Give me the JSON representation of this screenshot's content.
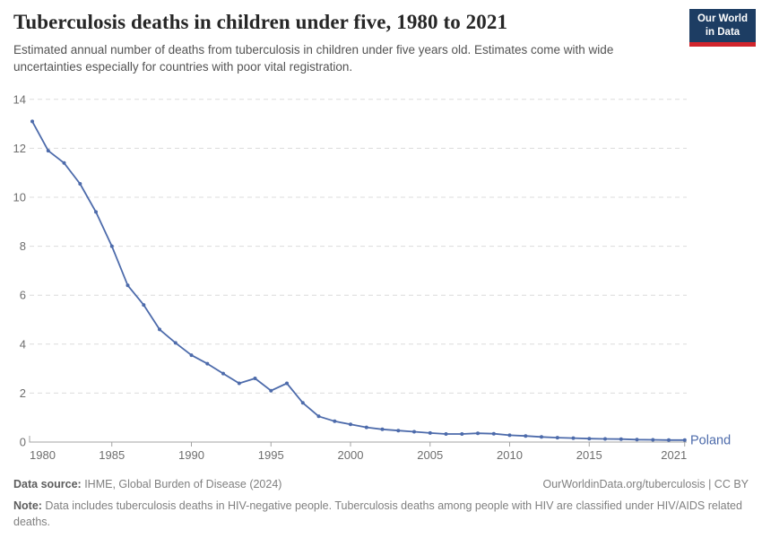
{
  "header": {
    "title": "Tuberculosis deaths in children under five, 1980 to 2021",
    "subtitle": "Estimated annual number of deaths from tuberculosis in children under five years old. Estimates come with wide uncertainties especially for countries with poor vital registration.",
    "logo": {
      "line1": "Our World",
      "line2": "in Data",
      "bg_color": "#1d3d63",
      "bar_color": "#d1252c"
    }
  },
  "chart_data": {
    "type": "line",
    "title": "Tuberculosis deaths in children under five, 1980 to 2021",
    "xlabel": "",
    "ylabel": "",
    "ylim": [
      0,
      14
    ],
    "yticks": [
      0,
      2,
      4,
      6,
      8,
      10,
      12,
      14
    ],
    "xticks": [
      1980,
      1985,
      1990,
      1995,
      2000,
      2005,
      2010,
      2015,
      2021
    ],
    "grid": "horizontal-dashed",
    "legend_position": "end-of-line-label",
    "x": [
      1980,
      1981,
      1982,
      1983,
      1984,
      1985,
      1986,
      1987,
      1988,
      1989,
      1990,
      1991,
      1992,
      1993,
      1994,
      1995,
      1996,
      1997,
      1998,
      1999,
      2000,
      2001,
      2002,
      2003,
      2004,
      2005,
      2006,
      2007,
      2008,
      2009,
      2010,
      2011,
      2012,
      2013,
      2014,
      2015,
      2016,
      2017,
      2018,
      2019,
      2020,
      2021
    ],
    "series": [
      {
        "name": "Poland",
        "color": "#4d6bab",
        "values": [
          13.1,
          11.9,
          11.4,
          10.55,
          9.4,
          8.0,
          6.4,
          5.6,
          4.6,
          4.05,
          3.55,
          3.2,
          2.8,
          2.4,
          2.6,
          2.1,
          2.4,
          1.6,
          1.05,
          0.85,
          0.72,
          0.6,
          0.52,
          0.47,
          0.42,
          0.37,
          0.33,
          0.33,
          0.36,
          0.34,
          0.28,
          0.25,
          0.21,
          0.18,
          0.16,
          0.14,
          0.13,
          0.12,
          0.1,
          0.09,
          0.08,
          0.08
        ]
      }
    ]
  },
  "footer": {
    "datasource_label": "Data source:",
    "datasource_text": " IHME, Global Burden of Disease (2024)",
    "link": "OurWorldinData.org/tuberculosis | CC BY",
    "note_label": "Note:",
    "note_text": " Data includes tuberculosis deaths in HIV-negative people. Tuberculosis deaths among people with HIV are classified under HIV/AIDS related deaths."
  }
}
